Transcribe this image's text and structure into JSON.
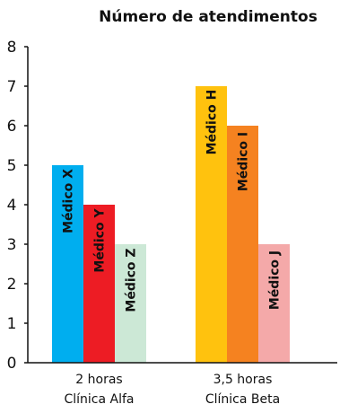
{
  "chart_data": {
    "type": "bar",
    "title": "Número de atendimentos",
    "xlabel": "",
    "ylabel": "",
    "ylim": [
      0,
      8
    ],
    "yticks": [
      "0",
      "1",
      "2",
      "3",
      "4",
      "5",
      "6",
      "7",
      "8"
    ],
    "grid": false,
    "groups": [
      {
        "label_lines": [
          "2 horas",
          "Clínica Alfa"
        ],
        "bars": [
          {
            "label": "Médico X",
            "value": 5,
            "color": "#00AEEF"
          },
          {
            "label": "Médico Y",
            "value": 4,
            "color": "#ED1C24"
          },
          {
            "label": "Médico Z",
            "value": 3,
            "color": "#CCE8D6"
          }
        ]
      },
      {
        "label_lines": [
          "3,5 horas",
          "Clínica Beta"
        ],
        "bars": [
          {
            "label": "Médico H",
            "value": 7,
            "color": "#FFC20E"
          },
          {
            "label": "Médico I",
            "value": 6,
            "color": "#F58220"
          },
          {
            "label": "Médico J",
            "value": 3,
            "color": "#F4A9A9"
          }
        ]
      }
    ]
  }
}
